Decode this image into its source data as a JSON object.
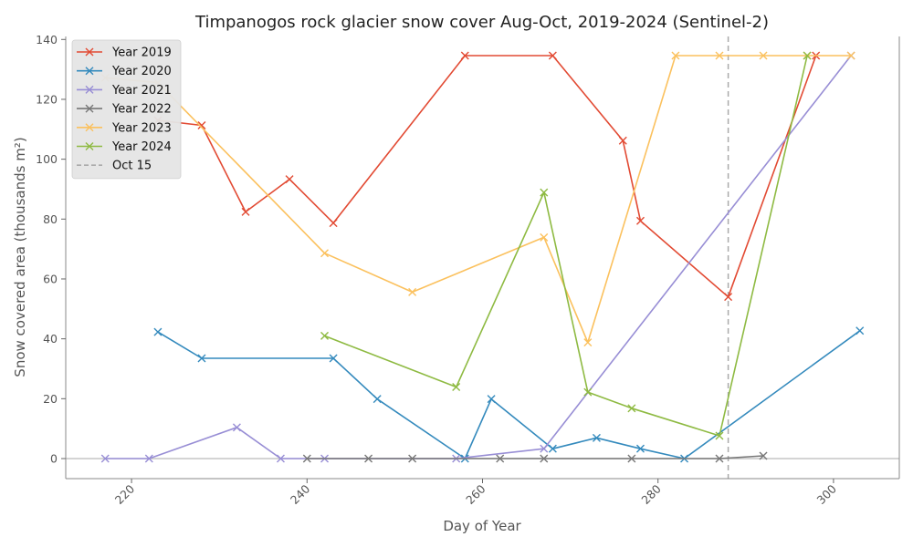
{
  "chart_data": {
    "type": "line",
    "title": "Timpanogos rock glacier snow cover Aug-Oct, 2019-2024 (Sentinel-2)",
    "xlabel": "Day of Year",
    "ylabel": "Snow covered area (thousands m²)",
    "xlim": [
      212.5,
      307.5
    ],
    "ylim": [
      -6.7,
      141
    ],
    "xticks": [
      220,
      240,
      260,
      280,
      300
    ],
    "yticks": [
      0,
      20,
      40,
      60,
      80,
      100,
      120,
      140
    ],
    "grid": false,
    "legend_position": "upper-left",
    "marker": "x",
    "series": [
      {
        "name": "Year 2019",
        "color": "#E24A33",
        "x": [
          223,
          228,
          233,
          238,
          243,
          258,
          268,
          276,
          278,
          288,
          298
        ],
        "y": [
          113,
          111.3,
          82.4,
          93.3,
          78.7,
          134.6,
          134.6,
          106.2,
          79.4,
          54,
          134.6
        ]
      },
      {
        "name": "Year 2020",
        "color": "#348ABD",
        "x": [
          223,
          228,
          243,
          248,
          258,
          261,
          268,
          273,
          278,
          283,
          303
        ],
        "y": [
          42.3,
          33.5,
          33.5,
          19.9,
          0,
          19.9,
          3.3,
          6.9,
          3.3,
          0,
          42.7
        ]
      },
      {
        "name": "Year 2021",
        "color": "#988ED5",
        "x": [
          217,
          222,
          232,
          237,
          242,
          257,
          267,
          302
        ],
        "y": [
          0,
          0,
          10.4,
          0,
          0,
          0,
          3.3,
          134.6
        ]
      },
      {
        "name": "Year 2022",
        "color": "#777777",
        "x": [
          240,
          247,
          252,
          262,
          267,
          277,
          287,
          292
        ],
        "y": [
          0,
          0,
          0,
          0,
          0,
          0,
          0,
          0.9
        ]
      },
      {
        "name": "Year 2023",
        "color": "#FBC15E",
        "x": [
          217,
          223,
          242,
          252,
          267,
          272,
          282,
          287,
          292,
          297,
          302
        ],
        "y": [
          127.2,
          125.6,
          68.6,
          55.6,
          73.9,
          38.8,
          134.6,
          134.6,
          134.6,
          134.6,
          134.6
        ]
      },
      {
        "name": "Year 2024",
        "color": "#8EBA42",
        "x": [
          242,
          257,
          267,
          272,
          277,
          287,
          297
        ],
        "y": [
          41,
          23.9,
          88.9,
          22.2,
          16.8,
          7.6,
          134.6
        ]
      }
    ],
    "reference_line": {
      "name": "Oct 15",
      "x": 288,
      "color": "#AAAAAA",
      "style": "dashed"
    },
    "zero_line_color": "#BBBBBB"
  }
}
